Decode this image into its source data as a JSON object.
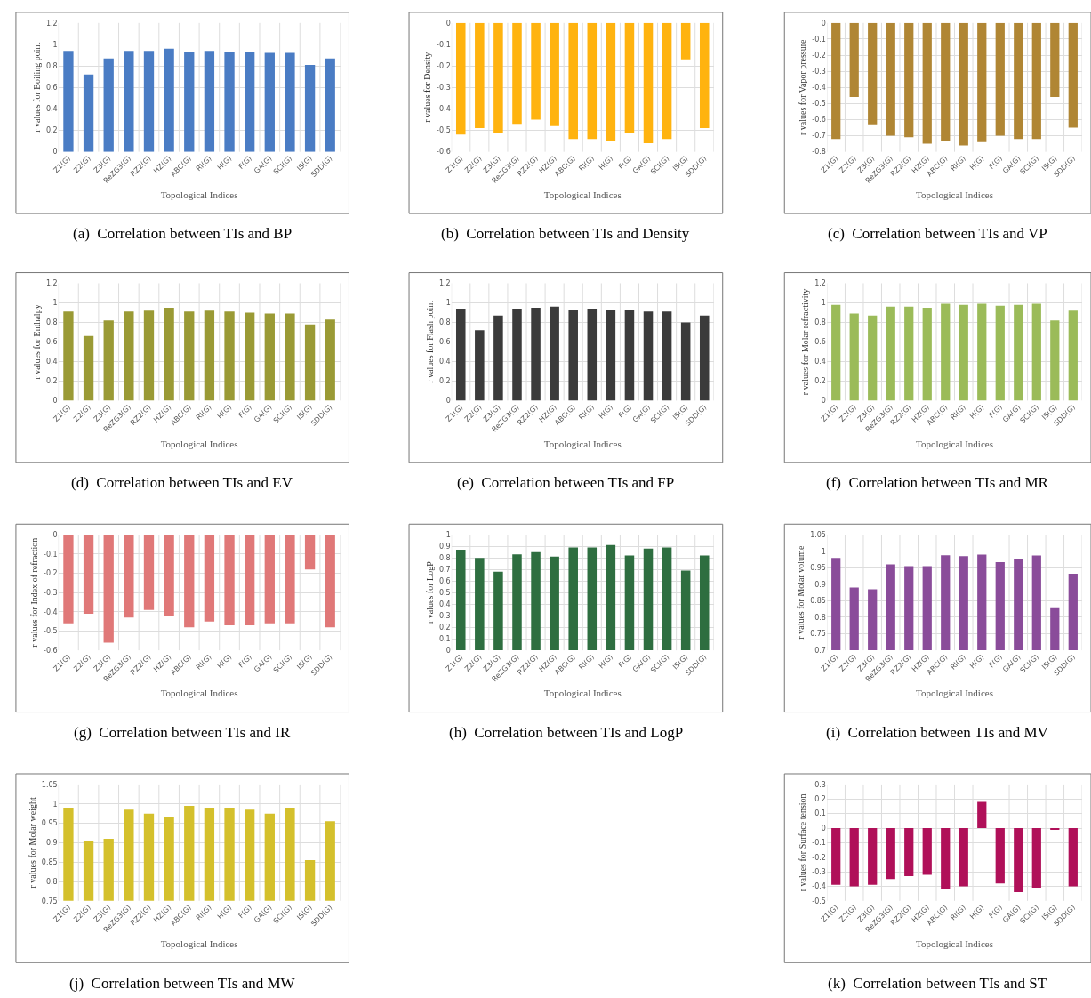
{
  "chart_data": [
    {
      "type": "bar",
      "categories": [
        "Z1(G)",
        "Z2(G)",
        "Z3(G)",
        "ReZG3(G)",
        "RZ2(G)",
        "HZ(G)",
        "ABC(G)",
        "RI(G)",
        "H(G)",
        "F(G)",
        "GA(G)",
        "SCI(G)",
        "IS(G)",
        "SDD(G)"
      ],
      "values": [
        0.94,
        0.72,
        0.87,
        0.94,
        0.94,
        0.96,
        0.93,
        0.94,
        0.93,
        0.93,
        0.92,
        0.92,
        0.81,
        0.87
      ],
      "color": "#4a7cc4",
      "xlabel": "Topological Indices",
      "ylabel": "r values for Boiling point",
      "ylim": [
        0,
        1.2
      ],
      "yticks": [
        0,
        0.2,
        0.4,
        0.6,
        0.8,
        1,
        1.2
      ],
      "grid": true,
      "annotations": [
        "(a)  Correlation between TIs and BP"
      ]
    },
    {
      "type": "bar",
      "categories": [
        "Z1(G)",
        "Z2(G)",
        "Z3(G)",
        "ReZG3(G)",
        "RZ2(G)",
        "HZ(G)",
        "ABC(G)",
        "RI(G)",
        "H(G)",
        "F(G)",
        "GA(G)",
        "SCI(G)",
        "IS(G)",
        "SDD(G)"
      ],
      "values": [
        -0.52,
        -0.49,
        -0.51,
        -0.47,
        -0.45,
        -0.48,
        -0.54,
        -0.54,
        -0.55,
        -0.51,
        -0.56,
        -0.54,
        -0.17,
        -0.49
      ],
      "color": "#ffb30f",
      "xlabel": "Topological Indices",
      "ylabel": "r values for Density",
      "ylim": [
        -0.6,
        0
      ],
      "yticks": [
        0,
        -0.1,
        -0.2,
        -0.3,
        -0.4,
        -0.5,
        -0.6
      ],
      "grid": true,
      "annotations": [
        "(b)  Correlation between TIs and Density"
      ]
    },
    {
      "type": "bar",
      "categories": [
        "Z1(G)",
        "Z2(G)",
        "Z3(G)",
        "ReZG3(G)",
        "RZ2(G)",
        "HZ(G)",
        "ABC(G)",
        "RI(G)",
        "H(G)",
        "F(G)",
        "GA(G)",
        "SCI(G)",
        "IS(G)",
        "SDD(G)"
      ],
      "values": [
        -0.72,
        -0.46,
        -0.63,
        -0.7,
        -0.71,
        -0.75,
        -0.73,
        -0.76,
        -0.74,
        -0.7,
        -0.72,
        -0.72,
        -0.46,
        -0.65
      ],
      "color": "#b08634",
      "xlabel": "Topological Indices",
      "ylabel": "r values for Vapor pressure",
      "ylim": [
        -0.8,
        0
      ],
      "yticks": [
        0,
        -0.1,
        -0.2,
        -0.3,
        -0.4,
        -0.5,
        -0.6,
        -0.7,
        -0.8
      ],
      "grid": true,
      "annotations": [
        "(c)  Correlation between TIs and VP"
      ]
    },
    {
      "type": "bar",
      "categories": [
        "Z1(G)",
        "Z2(G)",
        "Z3(G)",
        "ReZG3(G)",
        "RZ2(G)",
        "HZ(G)",
        "ABC(G)",
        "RI(G)",
        "H(G)",
        "F(G)",
        "GA(G)",
        "SCI(G)",
        "IS(G)",
        "SDD(G)"
      ],
      "values": [
        0.91,
        0.66,
        0.82,
        0.91,
        0.92,
        0.95,
        0.91,
        0.92,
        0.91,
        0.9,
        0.89,
        0.89,
        0.78,
        0.83
      ],
      "color": "#9a9a35",
      "xlabel": "Topological Indices",
      "ylabel": "r values for Enthalpy",
      "ylim": [
        0,
        1.2
      ],
      "yticks": [
        0,
        0.2,
        0.4,
        0.6,
        0.8,
        1,
        1.2
      ],
      "grid": true,
      "annotations": [
        "(d)  Correlation between TIs and EV"
      ]
    },
    {
      "type": "bar",
      "categories": [
        "Z1(G)",
        "Z2(G)",
        "Z3(G)",
        "ReZG3(G)",
        "RZ2(G)",
        "HZ(G)",
        "ABC(G)",
        "RI(G)",
        "H(G)",
        "F(G)",
        "GA(G)",
        "SCI(G)",
        "IS(G)",
        "SDD(G)"
      ],
      "values": [
        0.94,
        0.72,
        0.87,
        0.94,
        0.95,
        0.96,
        0.93,
        0.94,
        0.93,
        0.93,
        0.91,
        0.91,
        0.8,
        0.87
      ],
      "color": "#3b3b3b",
      "xlabel": "Topological Indices",
      "ylabel": "r values for Flash point",
      "ylim": [
        0,
        1.2
      ],
      "yticks": [
        0,
        0.2,
        0.4,
        0.6,
        0.8,
        1,
        1.2
      ],
      "grid": true,
      "annotations": [
        "(e)  Correlation between TIs and FP"
      ]
    },
    {
      "type": "bar",
      "categories": [
        "Z1(G)",
        "Z2(G)",
        "Z3(G)",
        "ReZG3(G)",
        "RZ2(G)",
        "HZ(G)",
        "ABC(G)",
        "RI(G)",
        "H(G)",
        "F(G)",
        "GA(G)",
        "SCI(G)",
        "IS(G)",
        "SDD(G)"
      ],
      "values": [
        0.98,
        0.89,
        0.87,
        0.96,
        0.96,
        0.95,
        0.99,
        0.98,
        0.99,
        0.97,
        0.98,
        0.99,
        0.82,
        0.92
      ],
      "color": "#9bbb59",
      "xlabel": "Topological Indices",
      "ylabel": "r values for Molar refractivity",
      "ylim": [
        0,
        1.2
      ],
      "yticks": [
        0,
        0.2,
        0.4,
        0.6,
        0.8,
        1,
        1.2
      ],
      "grid": true,
      "annotations": [
        "(f)  Correlation between TIs and MR"
      ]
    },
    {
      "type": "bar",
      "categories": [
        "Z1(G)",
        "Z2(G)",
        "Z3(G)",
        "ReZG3(G)",
        "RZ2(G)",
        "HZ(G)",
        "ABC(G)",
        "RI(G)",
        "H(G)",
        "F(G)",
        "GA(G)",
        "SCI(G)",
        "IS(G)",
        "SDD(G)"
      ],
      "values": [
        -0.46,
        -0.41,
        -0.56,
        -0.43,
        -0.39,
        -0.42,
        -0.48,
        -0.45,
        -0.47,
        -0.47,
        -0.46,
        -0.46,
        -0.18,
        -0.48
      ],
      "color": "#e07878",
      "xlabel": "Topological Indices",
      "ylabel": "r values for Index of refraction",
      "ylim": [
        -0.6,
        0
      ],
      "yticks": [
        0,
        -0.1,
        -0.2,
        -0.3,
        -0.4,
        -0.5,
        -0.6
      ],
      "grid": true,
      "annotations": [
        "(g)  Correlation between TIs and IR"
      ]
    },
    {
      "type": "bar",
      "categories": [
        "Z1(G)",
        "Z2(G)",
        "Z3(G)",
        "ReZG3(G)",
        "RZ2(G)",
        "HZ(G)",
        "ABC(G)",
        "RI(G)",
        "H(G)",
        "F(G)",
        "GA(G)",
        "SCI(G)",
        "IS(G)",
        "SDD(G)"
      ],
      "values": [
        0.87,
        0.8,
        0.68,
        0.83,
        0.85,
        0.81,
        0.89,
        0.89,
        0.91,
        0.82,
        0.88,
        0.89,
        0.69,
        0.82
      ],
      "color": "#2e6e40",
      "xlabel": "Topological Indices",
      "ylabel": "r values for LogP",
      "ylim": [
        0,
        1
      ],
      "yticks": [
        0,
        0.1,
        0.2,
        0.3,
        0.4,
        0.5,
        0.6,
        0.7,
        0.8,
        0.9,
        1
      ],
      "grid": true,
      "annotations": [
        "(h)  Correlation between TIs and LogP"
      ]
    },
    {
      "type": "bar",
      "categories": [
        "Z1(G)",
        "Z2(G)",
        "Z3(G)",
        "ReZG3(G)",
        "RZ2(G)",
        "HZ(G)",
        "ABC(G)",
        "RI(G)",
        "H(G)",
        "F(G)",
        "GA(G)",
        "SCI(G)",
        "IS(G)",
        "SDD(G)"
      ],
      "values": [
        0.98,
        0.89,
        0.885,
        0.96,
        0.955,
        0.955,
        0.988,
        0.985,
        0.99,
        0.967,
        0.975,
        0.987,
        0.83,
        0.932
      ],
      "color": "#8a4c9a",
      "xlabel": "Topological Indices",
      "ylabel": "r values for Molar volume",
      "ylim": [
        0.7,
        1.05
      ],
      "yticks": [
        0.7,
        0.75,
        0.8,
        0.85,
        0.9,
        0.95,
        1,
        1.05
      ],
      "grid": true,
      "annotations": [
        "(i)  Correlation between TIs and MV"
      ]
    },
    {
      "type": "bar",
      "categories": [
        "Z1(G)",
        "Z2(G)",
        "Z3(G)",
        "ReZG3(G)",
        "RZ2(G)",
        "HZ(G)",
        "ABC(G)",
        "RI(G)",
        "H(G)",
        "F(G)",
        "GA(G)",
        "SCI(G)",
        "IS(G)",
        "SDD(G)"
      ],
      "values": [
        0.99,
        0.905,
        0.91,
        0.985,
        0.975,
        0.965,
        0.995,
        0.99,
        0.99,
        0.985,
        0.975,
        0.99,
        0.855,
        0.955
      ],
      "color": "#d4c02c",
      "xlabel": "Topological Indices",
      "ylabel": "r values for Molar weight",
      "ylim": [
        0.75,
        1.05
      ],
      "yticks": [
        0.75,
        0.8,
        0.85,
        0.9,
        0.95,
        1,
        1.05
      ],
      "grid": true,
      "annotations": [
        "(j)  Correlation between TIs and MW"
      ]
    },
    {
      "type": "bar",
      "categories": [
        "Z1(G)",
        "Z2(G)",
        "Z3(G)",
        "ReZG3(G)",
        "RZ2(G)",
        "HZ(G)",
        "ABC(G)",
        "RI(G)",
        "H(G)",
        "F(G)",
        "GA(G)",
        "SCI(G)",
        "IS(G)",
        "SDD(G)"
      ],
      "values": [
        -0.39,
        -0.4,
        -0.39,
        -0.35,
        -0.33,
        -0.32,
        -0.42,
        -0.4,
        0.18,
        -0.38,
        -0.44,
        -0.41,
        -0.01,
        -0.4
      ],
      "color": "#b01059",
      "xlabel": "Topological Indices",
      "ylabel": "r values for Surface tension",
      "ylim": [
        -0.5,
        0.3
      ],
      "yticks": [
        0.3,
        0.2,
        0.1,
        0,
        -0.1,
        -0.2,
        -0.3,
        -0.4,
        -0.5
      ],
      "grid": true,
      "annotations": [
        "(k)  Correlation between TIs and ST"
      ]
    }
  ]
}
